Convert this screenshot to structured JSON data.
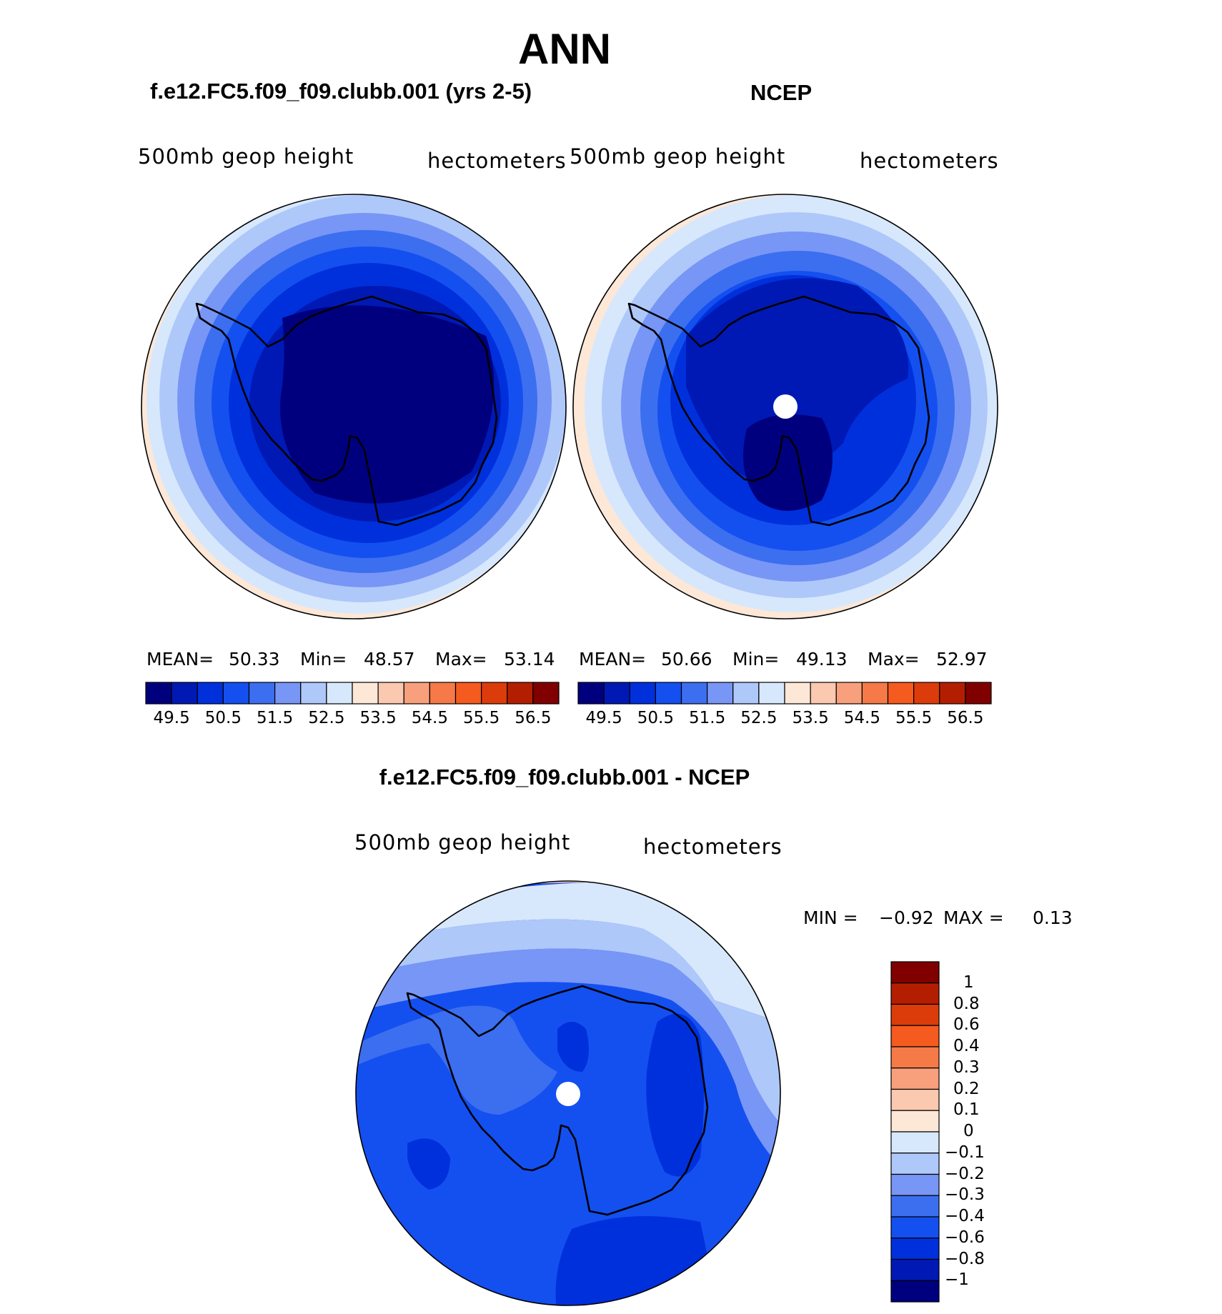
{
  "figure": {
    "title": "ANN"
  },
  "panels": [
    {
      "id": "model",
      "title": "f.e12.FC5.f09_f09.clubb.001 (yrs 2-5)",
      "left_label": "500mb  geop  height",
      "right_label": "hectometers",
      "stats": {
        "mean_label": "MEAN=",
        "mean": "50.33",
        "min_label": "Min=",
        "min": "48.57",
        "max_label": "Max=",
        "max": "53.14"
      }
    },
    {
      "id": "obs",
      "title": "NCEP",
      "left_label": "500mb  geop  height",
      "right_label": "hectometers",
      "stats": {
        "mean_label": "MEAN=",
        "mean": "50.66",
        "min_label": "Min=",
        "min": "49.13",
        "max_label": "Max=",
        "max": "52.97"
      }
    },
    {
      "id": "diff",
      "title": "f.e12.FC5.f09_f09.clubb.001 - NCEP",
      "left_label": "500mb  geop  height",
      "right_label": "hectometers",
      "stats": {
        "min_label": "MIN =",
        "min": "−0.92",
        "max_label": "MAX =",
        "max": "0.13"
      }
    }
  ],
  "colorbars": {
    "absolute": {
      "colors": [
        "#00007f",
        "#0019b4",
        "#0030dc",
        "#1450f0",
        "#3c6ef0",
        "#7896f5",
        "#afc8fa",
        "#d7e8fc",
        "#fde7d6",
        "#fbc8b0",
        "#f8a07c",
        "#f57a48",
        "#f55a1e",
        "#dc3c0a",
        "#b41e00",
        "#800000"
      ],
      "labels": [
        "49.5",
        "50.5",
        "51.5",
        "52.5",
        "53.5",
        "54.5",
        "55.5",
        "56.5"
      ]
    },
    "difference": {
      "colors": [
        "#00007f",
        "#0019b4",
        "#0030dc",
        "#1450f0",
        "#3c6ef0",
        "#7896f5",
        "#afc8fa",
        "#d7e8fc",
        "#fde7d6",
        "#fbc8b0",
        "#f8a07c",
        "#f57a48",
        "#f55a1e",
        "#dc3c0a",
        "#b41e00",
        "#800000"
      ],
      "labels": [
        "1",
        "0.8",
        "0.6",
        "0.4",
        "0.3",
        "0.2",
        "0.1",
        "0",
        "−0.1",
        "−0.2",
        "−0.3",
        "−0.4",
        "−0.6",
        "−0.8",
        "−1"
      ]
    }
  }
}
